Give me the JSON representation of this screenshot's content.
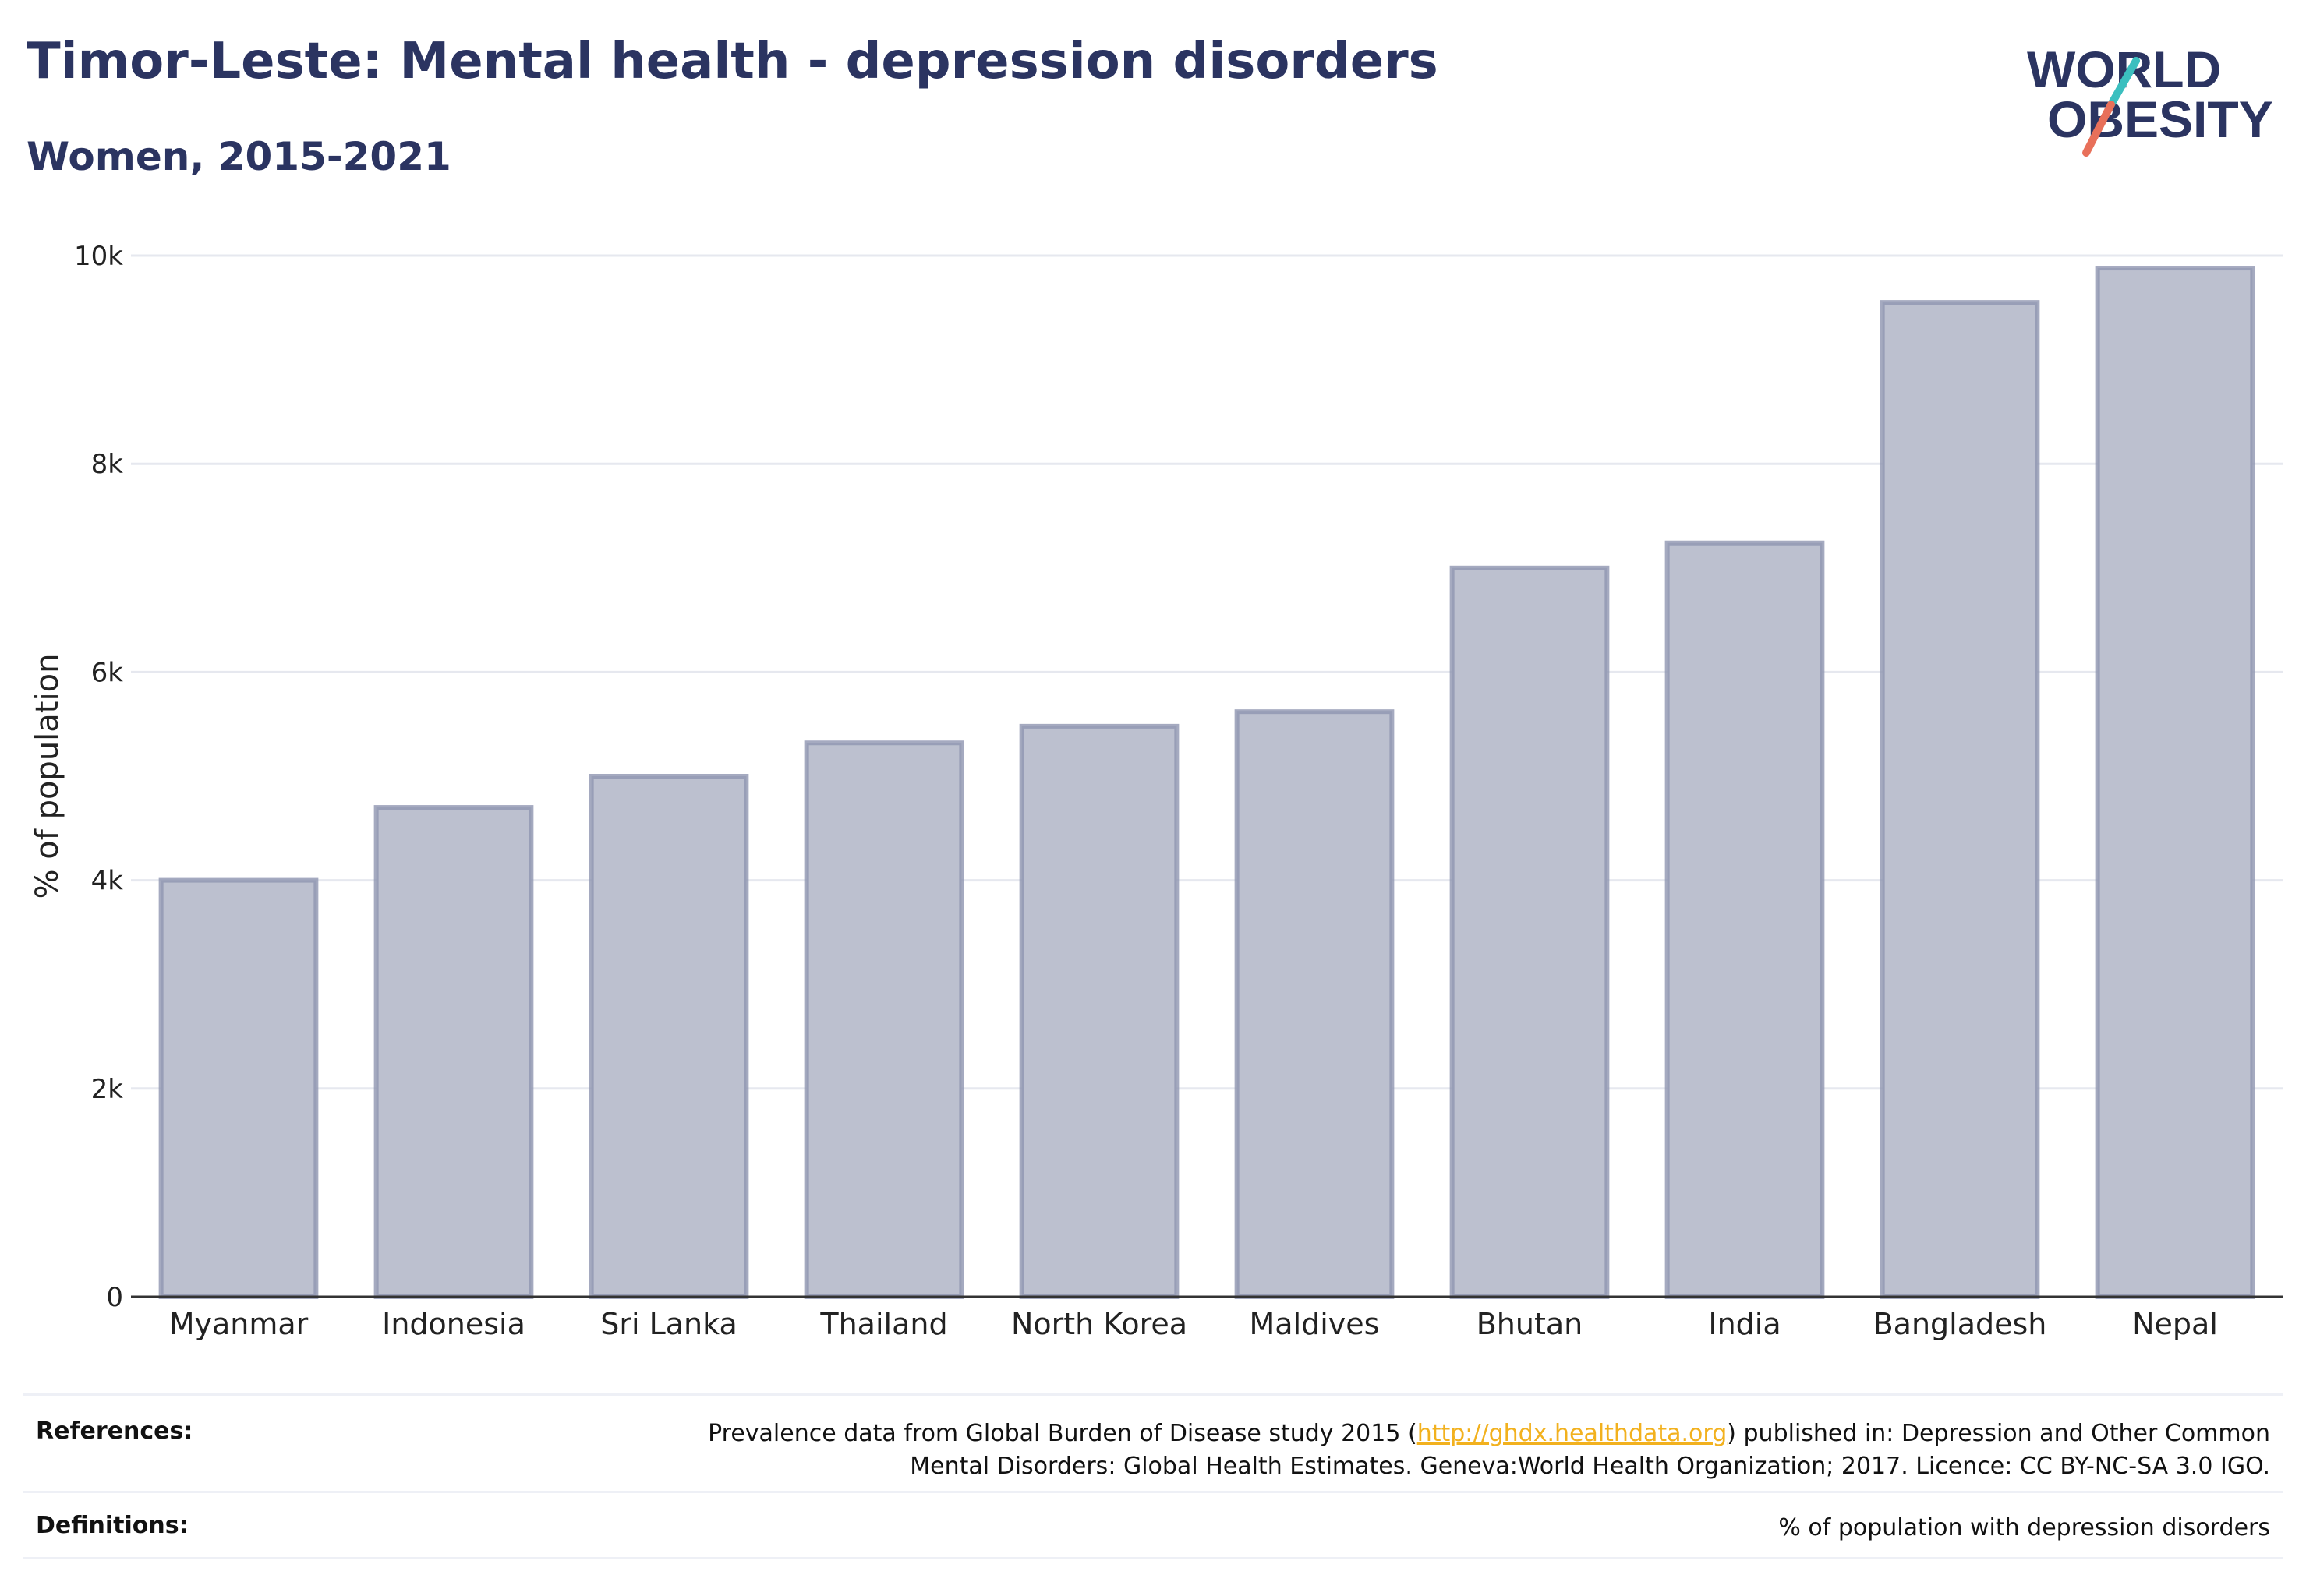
{
  "header": {
    "title": "Timor-Leste: Mental health - depression disorders",
    "subtitle": "Women, 2015-2021"
  },
  "logo": {
    "line1": "WORLD",
    "line2": "OBESITY",
    "colors": {
      "text": "#2b3461",
      "slash_top": "#3bbfbf",
      "slash_bottom": "#e8705a"
    }
  },
  "chart_data": {
    "type": "bar",
    "categories": [
      "Myanmar",
      "Indonesia",
      "Sri Lanka",
      "Thailand",
      "North Korea",
      "Maldives",
      "Bhutan",
      "India",
      "Bangladesh",
      "Nepal"
    ],
    "values": [
      4000,
      4700,
      5000,
      5320,
      5480,
      5620,
      7000,
      7240,
      9550,
      9880
    ],
    "xlabel": "",
    "ylabel": "% of population",
    "ylim": [
      0,
      10000
    ],
    "yticks": [
      0,
      2000,
      4000,
      6000,
      8000,
      10000
    ],
    "ytick_labels": [
      "0",
      "2k",
      "4k",
      "6k",
      "8k",
      "10k"
    ],
    "grid": true,
    "colors": {
      "bar_fill": "#bcc0cf",
      "bar_stroke": "#8f95b0",
      "grid": "#e6e8ef",
      "axis": "#333333"
    }
  },
  "footer": {
    "references_label": "References:",
    "references_pre": "Prevalence data from Global Burden of Disease study 2015 (",
    "references_link": "http://ghdx.healthdata.org",
    "references_post": ") published in: Depression and Other Common",
    "references_line2": "Mental Disorders: Global Health Estimates. Geneva:World Health Organization; 2017. Licence: CC BY-NC-SA 3.0 IGO.",
    "definitions_label": "Definitions:",
    "definitions_text": "% of population with depression disorders"
  }
}
